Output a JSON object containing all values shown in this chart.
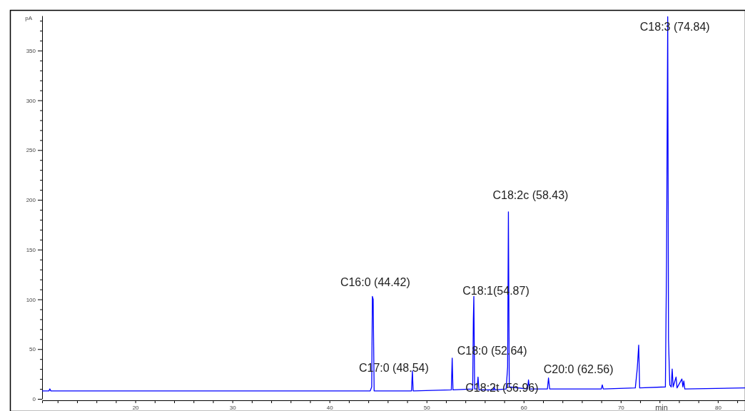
{
  "chart_data": {
    "type": "line",
    "xlabel": "min",
    "ylabel": "pA",
    "x": [
      10.4,
      11.1,
      11.2,
      11.3,
      44.2,
      44.35,
      44.42,
      44.5,
      44.6,
      48.45,
      48.54,
      48.62,
      52.55,
      52.64,
      52.72,
      54.75,
      54.82,
      54.87,
      54.95,
      55.2,
      55.3,
      55.4,
      56.9,
      56.96,
      57.05,
      58.2,
      58.35,
      58.43,
      58.52,
      60.4,
      60.5,
      60.6,
      62.45,
      62.56,
      62.68,
      68.0,
      68.1,
      68.2,
      71.5,
      71.7,
      71.85,
      71.95,
      74.6,
      74.72,
      74.84,
      74.92,
      75.05,
      75.2,
      75.3,
      75.4,
      75.7,
      75.8,
      76.3,
      76.4,
      76.5,
      76.6,
      82.8
    ],
    "series": [
      {
        "color": "#0000ff",
        "values": [
          8,
          8,
          10,
          8,
          8,
          12,
          103,
          100,
          8,
          8,
          28,
          8,
          9,
          41,
          9,
          10,
          80,
          103,
          10,
          10,
          22,
          9,
          9,
          12,
          9,
          10,
          32,
          188,
          12,
          10,
          19,
          10,
          10,
          21,
          10,
          10,
          14,
          10,
          11,
          30,
          54,
          11,
          12,
          140,
          384,
          60,
          14,
          12,
          30,
          12,
          22,
          11,
          20,
          12,
          18,
          10,
          11
        ]
      }
    ],
    "xlim": [
      10.4,
      82.8
    ],
    "xticks": [
      {
        "value": 12,
        "label": null
      },
      {
        "value": 14,
        "label": null
      },
      {
        "value": 16,
        "label": null
      },
      {
        "value": 18,
        "label": null
      },
      20,
      {
        "value": 22,
        "label": null
      },
      {
        "value": 24,
        "label": null
      },
      {
        "value": 26,
        "label": null
      },
      {
        "value": 28,
        "label": null
      },
      30,
      {
        "value": 32,
        "label": null
      },
      {
        "value": 34,
        "label": null
      },
      {
        "value": 36,
        "label": null
      },
      {
        "value": 38,
        "label": null
      },
      40,
      {
        "value": 42,
        "label": null
      },
      {
        "value": 44,
        "label": null
      },
      {
        "value": 46,
        "label": null
      },
      {
        "value": 48,
        "label": null
      },
      50,
      {
        "value": 52,
        "label": null
      },
      {
        "value": 54,
        "label": null
      },
      {
        "value": 56,
        "label": null
      },
      {
        "value": 58,
        "label": null
      },
      60,
      {
        "value": 62,
        "label": null
      },
      {
        "value": 64,
        "label": null
      },
      {
        "value": 66,
        "label": null
      },
      {
        "value": 68,
        "label": null
      },
      70,
      {
        "value": 72,
        "label": null
      },
      {
        "value": 74,
        "label": null
      },
      {
        "value": 76,
        "label": null
      },
      {
        "value": 78,
        "label": null
      },
      80,
      {
        "value": 82,
        "label": null
      }
    ],
    "ylim": [
      0,
      385
    ],
    "yticks": [
      0,
      {
        "value": 10,
        "label": null
      },
      {
        "value": 20,
        "label": null
      },
      {
        "value": 30,
        "label": null
      },
      {
        "value": 40,
        "label": null
      },
      50,
      {
        "value": 60,
        "label": null
      },
      {
        "value": 70,
        "label": null
      },
      {
        "value": 80,
        "label": null
      },
      {
        "value": 90,
        "label": null
      },
      100,
      {
        "value": 110,
        "label": null
      },
      {
        "value": 120,
        "label": null
      },
      {
        "value": 130,
        "label": null
      },
      {
        "value": 140,
        "label": null
      },
      150,
      {
        "value": 160,
        "label": null
      },
      {
        "value": 170,
        "label": null
      },
      {
        "value": 180,
        "label": null
      },
      {
        "value": 190,
        "label": null
      },
      200,
      {
        "value": 210,
        "label": null
      },
      {
        "value": 220,
        "label": null
      },
      {
        "value": 230,
        "label": null
      },
      {
        "value": 240,
        "label": null
      },
      250,
      {
        "value": 260,
        "label": null
      },
      {
        "value": 270,
        "label": null
      },
      {
        "value": 280,
        "label": null
      },
      {
        "value": 290,
        "label": null
      },
      300,
      {
        "value": 310,
        "label": null
      },
      {
        "value": 320,
        "label": null
      },
      {
        "value": 330,
        "label": null
      },
      {
        "value": 340,
        "label": null
      },
      350,
      {
        "value": 360,
        "label": null
      },
      {
        "value": 370,
        "label": null
      },
      {
        "value": 380,
        "label": null
      }
    ],
    "grid": false,
    "marker": "none",
    "line_style": "solid",
    "annotations": [
      {
        "text": "C16:0 (44.42)",
        "x": 44.42,
        "y": 103
      },
      {
        "text": "C17:0 (48.54)",
        "x": 48.54,
        "y": 28
      },
      {
        "text": "C18:0 (52.64)",
        "x": 52.64,
        "y": 41
      },
      {
        "text": "C18:1(54.87)",
        "x": 54.87,
        "y": 103
      },
      {
        "text": "C18:2t (56.96)",
        "x": 56.96,
        "y": 12
      },
      {
        "text": "C18:2c (58.43)",
        "x": 58.43,
        "y": 188
      },
      {
        "text": "C20:0 (62.56)",
        "x": 62.56,
        "y": 21
      },
      {
        "text": "C18:3 (74.84)",
        "x": 74.84,
        "y": 384
      }
    ]
  }
}
